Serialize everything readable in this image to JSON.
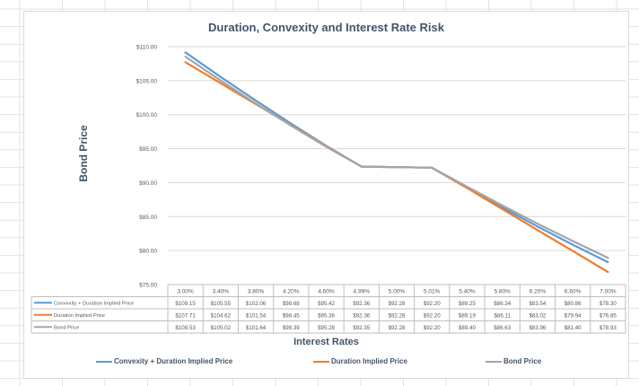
{
  "chart_data": {
    "type": "line",
    "title": "Duration, Convexity and Interest Rate Risk",
    "xlabel": "Interest Rates",
    "ylabel": "Bond Price",
    "ylim": [
      75,
      110
    ],
    "y_ticks": [
      "$75.00",
      "$80.00",
      "$85.00",
      "$90.00",
      "$95.00",
      "$100.00",
      "$105.00",
      "$110.00"
    ],
    "categories": [
      "3.00%",
      "3.40%",
      "3.80%",
      "4.20%",
      "4.60%",
      "4.99%",
      "5.00%",
      "5.01%",
      "5.40%",
      "5.80%",
      "6.20%",
      "6.60%",
      "7.00%"
    ],
    "grid": true,
    "legend_position": "bottom",
    "data_table": true,
    "series": [
      {
        "name": "Convexity + Duration  Implied Price",
        "color": "#5b9bd5",
        "values": [
          109.15,
          105.55,
          102.06,
          98.68,
          95.42,
          92.36,
          92.28,
          92.2,
          89.25,
          86.34,
          83.54,
          80.86,
          78.3
        ],
        "labels": [
          "$109.15",
          "$105.55",
          "$102.06",
          "$98.68",
          "$95.42",
          "$92.36",
          "$92.28",
          "$92.20",
          "$89.25",
          "$86.34",
          "$83.54",
          "$80.86",
          "$78.30"
        ]
      },
      {
        "name": "Duration  Implied Price",
        "color": "#ed7d31",
        "values": [
          107.71,
          104.62,
          101.54,
          98.45,
          95.36,
          92.36,
          92.28,
          92.2,
          89.19,
          86.11,
          83.02,
          79.94,
          76.85
        ],
        "labels": [
          "$107.71",
          "$104.62",
          "$101.54",
          "$98.45",
          "$95.36",
          "$92.36",
          "$92.28",
          "$92.20",
          "$89.19",
          "$86.11",
          "$83.02",
          "$79.94",
          "$76.85"
        ]
      },
      {
        "name": "Bond Price",
        "color": "#a5a5a5",
        "values": [
          108.53,
          105.02,
          101.64,
          98.39,
          95.28,
          92.35,
          92.28,
          92.2,
          89.4,
          86.63,
          83.96,
          81.4,
          78.93
        ],
        "labels": [
          "$108.53",
          "$105.02",
          "$101.64",
          "$98.39",
          "$95.28",
          "$92.35",
          "$92.28",
          "$92.20",
          "$89.40",
          "$86.63",
          "$83.96",
          "$81.40",
          "$78.93"
        ]
      }
    ]
  }
}
